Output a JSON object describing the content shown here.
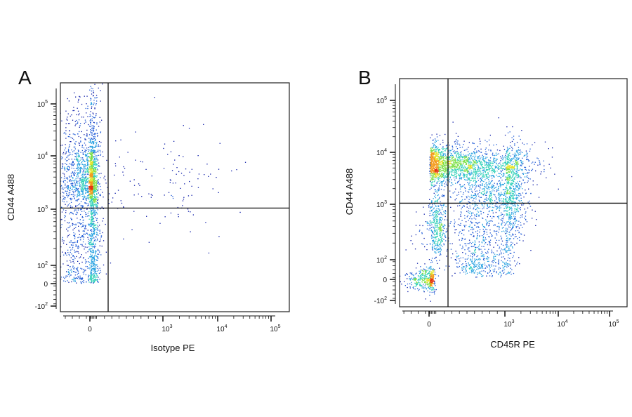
{
  "chart_data": [
    {
      "type": "scatter",
      "panel_label": "A",
      "xlabel": "Isotype PE",
      "ylabel": "CD44 A488",
      "scale": "biexponential",
      "x_tick_labels": [
        {
          "value": 0,
          "label": "0"
        },
        {
          "value": 1000,
          "label": "10^3"
        },
        {
          "value": 10000,
          "label": "10^4"
        },
        {
          "value": 100000,
          "label": "10^5"
        }
      ],
      "y_tick_labels": [
        {
          "value": -100,
          "label": "-10^2"
        },
        {
          "value": 0,
          "label": "0"
        },
        {
          "value": 100,
          "label": "10^2"
        },
        {
          "value": 1000,
          "label": "10^3"
        },
        {
          "value": 10000,
          "label": "10^4"
        },
        {
          "value": 100000,
          "label": "10^5"
        }
      ],
      "quadrant_gate": {
        "x": 250,
        "y": 1050
      },
      "populations": [
        {
          "name": "",
          "x_center": 0,
          "y_center": 3000,
          "x_spread": 60,
          "y_spread_decades": 0.9,
          "density": "high"
        },
        {
          "name": "",
          "x_center": 0,
          "y_center": 6000,
          "x_spread": 40,
          "y_spread_decades": 0.2,
          "density": "peak"
        },
        {
          "name": "",
          "x_center": 0,
          "y_center": 2500,
          "x_spread": 40,
          "y_spread_decades": 0.15,
          "density": "peak"
        },
        {
          "name": "",
          "x_center": 0,
          "y_center": 120,
          "x_spread": 60,
          "y_spread_decades": 0.5,
          "density": "medium"
        },
        {
          "name": "",
          "x_center": 1200,
          "y_center": 2500,
          "x_spread_decades": 0.6,
          "y_spread_decades": 0.5,
          "density": "sparse"
        }
      ]
    },
    {
      "type": "scatter",
      "panel_label": "B",
      "xlabel": "CD45R PE",
      "ylabel": "CD44 A488",
      "scale": "biexponential",
      "x_tick_labels": [
        {
          "value": 0,
          "label": "0"
        },
        {
          "value": 1000,
          "label": "10^3"
        },
        {
          "value": 10000,
          "label": "10^4"
        },
        {
          "value": 100000,
          "label": "10^5"
        }
      ],
      "y_tick_labels": [
        {
          "value": -100,
          "label": "-10^2"
        },
        {
          "value": 0,
          "label": "0"
        },
        {
          "value": 100,
          "label": "10^2"
        },
        {
          "value": 1000,
          "label": "10^3"
        },
        {
          "value": 10000,
          "label": "10^4"
        },
        {
          "value": 100000,
          "label": "10^5"
        }
      ],
      "quadrant_gate": {
        "x": 250,
        "y": 1050
      },
      "populations": [
        {
          "name": "",
          "x_center": 600,
          "y_center": 5500,
          "x_spread_decades": 0.25,
          "y_spread_decades": 0.12,
          "density": "peak"
        },
        {
          "name": "",
          "x_center": 200,
          "y_center": 6000,
          "x_spread_decades": 0.6,
          "y_spread_decades": 0.2,
          "density": "high"
        },
        {
          "name": "",
          "x_center": 900,
          "y_center": 1500,
          "x_spread_decades": 0.2,
          "y_spread_decades": 0.45,
          "density": "high"
        },
        {
          "name": "",
          "x_center": 100,
          "y_center": 400,
          "x_spread": 70,
          "y_spread_decades": 0.3,
          "density": "medium"
        },
        {
          "name": "",
          "x_center": 700,
          "y_center": 90,
          "x_spread_decades": 0.15,
          "y_spread_decades": 0.3,
          "density": "medium"
        },
        {
          "name": "",
          "x_center": 0,
          "y_center": 0,
          "x_spread": 35,
          "y_spread": 30,
          "density": "medium"
        }
      ]
    }
  ]
}
